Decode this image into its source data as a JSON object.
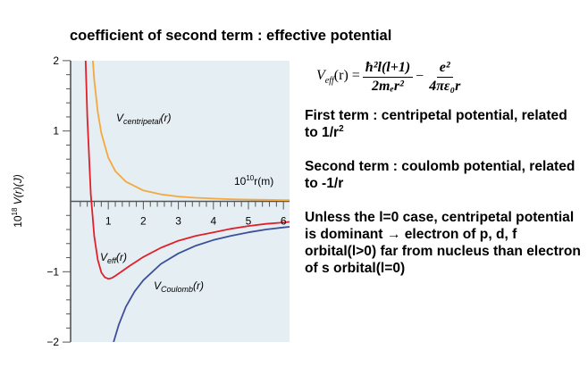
{
  "heading": "coefficient of second term : effective potential",
  "formula": {
    "lhs": "V",
    "lhs_sub": "eff",
    "lhs_arg": "(r) =",
    "term1_num": "ħ²l(l+1)",
    "term1_den": "2mₑr²",
    "minus": "−",
    "term2_num": "e²",
    "term2_den": "4πε₀r"
  },
  "notes": {
    "first_term": "First term : centripetal potential, related to 1/r",
    "first_term_sup": "2",
    "second_term": "Second term : coulomb potential, related to -1/r",
    "conclusion": "Unless the l=0 case, centripetal potential is dominant → electron of p, d, f orbital(l>0) far from nucleus than electron of s orbital(l=0)"
  },
  "chart_data": {
    "type": "line",
    "title": "",
    "ylabel_prefix": "10",
    "ylabel_exp": "18",
    "ylabel_main": " V(r)(J)",
    "xlabel_prefix": "10",
    "xlabel_exp": "10",
    "xlabel_main": "r(m)",
    "xlim": [
      0,
      6.2
    ],
    "ylim": [
      -2,
      2
    ],
    "x_ticks": [
      "1",
      "2",
      "3",
      "4",
      "5",
      "6"
    ],
    "y_ticks": [
      "2",
      "1",
      "−1",
      "−2"
    ],
    "grid": false,
    "background": "#e4eef3",
    "colors": {
      "centripetal": "#f5a83e",
      "effective": "#e0202a",
      "coulomb": "#3e4f9b",
      "axis": "#555555"
    },
    "series": [
      {
        "name": "V_centripetal(r)",
        "label_main": "V",
        "label_sub": "centripetal",
        "label_tail": "(r)",
        "x": [
          0.55,
          0.6,
          0.7,
          0.8,
          1.0,
          1.2,
          1.5,
          2.0,
          2.5,
          3.0,
          3.5,
          4.0,
          4.5,
          5.0,
          5.5,
          6.0,
          6.2
        ],
        "y": [
          2.05,
          1.72,
          1.27,
          0.97,
          0.62,
          0.43,
          0.28,
          0.155,
          0.1,
          0.069,
          0.051,
          0.039,
          0.031,
          0.025,
          0.021,
          0.017,
          0.016
        ]
      },
      {
        "name": "V_eff(r)",
        "label_main": "V",
        "label_sub": "eff",
        "label_tail": "(r)",
        "x": [
          0.35,
          0.4,
          0.5,
          0.6,
          0.7,
          0.8,
          0.9,
          1.0,
          1.1,
          1.2,
          1.4,
          1.6,
          2.0,
          2.5,
          3.0,
          3.5,
          4.0,
          4.5,
          5.0,
          5.5,
          6.0,
          6.2
        ],
        "y": [
          2.05,
          1.2,
          0.1,
          -0.5,
          -0.83,
          -1.01,
          -1.08,
          -1.1,
          -1.09,
          -1.06,
          -0.99,
          -0.92,
          -0.79,
          -0.66,
          -0.56,
          -0.49,
          -0.44,
          -0.39,
          -0.35,
          -0.32,
          -0.3,
          -0.29
        ]
      },
      {
        "name": "V_Coulomb(r)",
        "label_main": "V",
        "label_sub": "Coulomb",
        "label_tail": "(r)",
        "x": [
          1.15,
          1.3,
          1.5,
          1.75,
          2.0,
          2.5,
          3.0,
          3.5,
          4.0,
          4.5,
          5.0,
          5.5,
          6.0,
          6.2
        ],
        "y": [
          -2.0,
          -1.75,
          -1.5,
          -1.28,
          -1.12,
          -0.89,
          -0.74,
          -0.63,
          -0.55,
          -0.49,
          -0.44,
          -0.4,
          -0.37,
          -0.36
        ]
      }
    ]
  }
}
